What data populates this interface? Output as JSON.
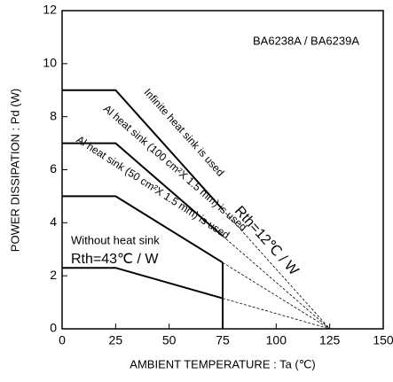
{
  "chart_data": {
    "type": "line",
    "title": "BA6238A / BA6239A",
    "xlabel": "AMBIENT TEMPERATURE : Ta (℃)",
    "ylabel": "POWER DISSIPATION : Pd (W)",
    "x": [
      0,
      25,
      75,
      125
    ],
    "series": [
      {
        "name": "Infinite heat sink is used",
        "color": "#000000",
        "values": [
          9,
          9,
          4.5,
          0
        ]
      },
      {
        "name": "Al heat sink (100 cm²X 1.5 mm) is used",
        "color": "#000000",
        "values": [
          7,
          7,
          3.5,
          0
        ]
      },
      {
        "name": "Al heat sink (50 cm²X 1.5 mm) is used",
        "color": "#000000",
        "values": [
          5,
          5,
          2.5,
          0
        ]
      },
      {
        "name": "Without heat sink",
        "color": "#000000",
        "values": [
          2.3,
          2.3,
          1.15,
          0
        ]
      }
    ],
    "annotations": [
      "Rth=12℃ / W",
      "Rth=43℃ / W"
    ],
    "xlim": [
      0,
      150
    ],
    "xticks": [
      0,
      25,
      50,
      75,
      100,
      125,
      150
    ],
    "ylim": [
      0,
      12
    ],
    "yticks": [
      0,
      2,
      4,
      6,
      8,
      10,
      12
    ],
    "grid": false
  }
}
